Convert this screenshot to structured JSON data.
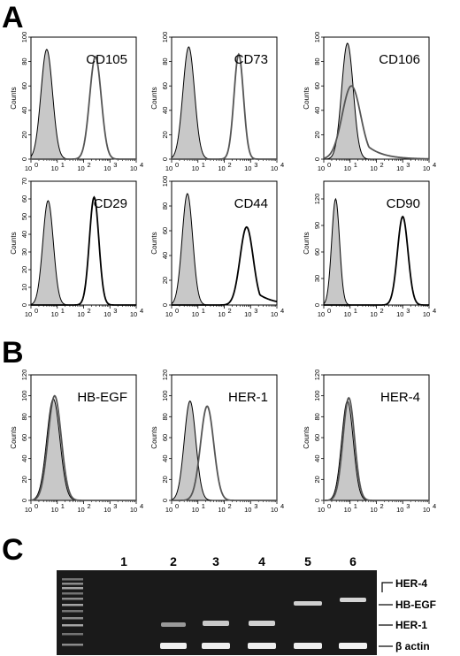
{
  "panel_labels": [
    "A",
    "B",
    "C"
  ],
  "chart_data": [
    {
      "type": "area",
      "title": "CD105",
      "ylabel": "Counts",
      "ylim": [
        0,
        100
      ],
      "yticks": [
        "0",
        "20",
        "40",
        "60",
        "80",
        "100"
      ],
      "xscale": "log",
      "xticks": [
        "10",
        "10",
        "10",
        "10",
        "10"
      ],
      "xtick_exponents": [
        "0",
        "1",
        "2",
        "3",
        "4"
      ],
      "control": {
        "fill": "#c8c8c8",
        "peak_log10": 0.6,
        "sd": 0.22,
        "peak": 90
      },
      "series": [
        {
          "peak_log10": 2.45,
          "sd": 0.22,
          "peak": 84,
          "color": "#555555"
        }
      ]
    },
    {
      "type": "area",
      "title": "CD73",
      "ylabel": "Counts",
      "ylim": [
        0,
        100
      ],
      "yticks": [
        "0",
        "20",
        "40",
        "60",
        "80",
        "100"
      ],
      "xscale": "log",
      "xticks": [
        "10",
        "10",
        "10",
        "10",
        "10"
      ],
      "xtick_exponents": [
        "0",
        "1",
        "2",
        "3",
        "4"
      ],
      "control": {
        "fill": "#c8c8c8",
        "peak_log10": 0.65,
        "sd": 0.22,
        "peak": 92
      },
      "series": [
        {
          "peak_log10": 2.55,
          "sd": 0.18,
          "peak": 86,
          "color": "#555555"
        }
      ]
    },
    {
      "type": "area",
      "title": "CD106",
      "ylabel": "Counts",
      "ylim": [
        0,
        100
      ],
      "yticks": [
        "0",
        "20",
        "40",
        "60",
        "80",
        "100"
      ],
      "xscale": "log",
      "xticks": [
        "10",
        "10",
        "10",
        "10",
        "10"
      ],
      "xtick_exponents": [
        "0",
        "1",
        "2",
        "3",
        "4"
      ],
      "control": {
        "fill": "#c8c8c8",
        "peak_log10": 0.9,
        "sd": 0.22,
        "peak": 95
      },
      "series": [
        {
          "peak_log10": 1.05,
          "sd": 0.35,
          "peak": 60,
          "tail": 0.5,
          "color": "#555555"
        }
      ]
    },
    {
      "type": "area",
      "title": "CD29",
      "ylabel": "Counts",
      "ylim": [
        0,
        70
      ],
      "yticks": [
        "0",
        "10",
        "20",
        "30",
        "40",
        "50",
        "60",
        "70"
      ],
      "xscale": "log",
      "xticks": [
        "10",
        "10",
        "10",
        "10",
        "10"
      ],
      "xtick_exponents": [
        "0",
        "1",
        "2",
        "3",
        "4"
      ],
      "control": {
        "fill": "#c8c8c8",
        "peak_log10": 0.65,
        "sd": 0.2,
        "peak": 59
      },
      "series": [
        {
          "peak_log10": 2.4,
          "sd": 0.18,
          "peak": 61,
          "color": "#000000"
        }
      ]
    },
    {
      "type": "area",
      "title": "CD44",
      "ylabel": "Counts",
      "ylim": [
        0,
        100
      ],
      "yticks": [
        "0",
        "20",
        "40",
        "60",
        "80",
        "100"
      ],
      "xscale": "log",
      "xticks": [
        "10",
        "10",
        "10",
        "10",
        "10"
      ],
      "xtick_exponents": [
        "0",
        "1",
        "2",
        "3",
        "4"
      ],
      "control": {
        "fill": "#c8c8c8",
        "peak_log10": 0.6,
        "sd": 0.2,
        "peak": 90
      },
      "series": [
        {
          "peak_log10": 2.85,
          "sd": 0.25,
          "peak": 63,
          "tail": 0.3,
          "color": "#000000"
        }
      ]
    },
    {
      "type": "area",
      "title": "CD90",
      "ylabel": "Counts",
      "ylim": [
        0,
        140
      ],
      "yticks": [
        "0",
        "30",
        "60",
        "90",
        "120"
      ],
      "xscale": "log",
      "xticks": [
        "10",
        "10",
        "10",
        "10",
        "10"
      ],
      "xtick_exponents": [
        "0",
        "1",
        "2",
        "3",
        "4"
      ],
      "control": {
        "fill": "#c8c8c8",
        "peak_log10": 0.45,
        "sd": 0.15,
        "peak": 120
      },
      "series": [
        {
          "peak_log10": 3.0,
          "sd": 0.2,
          "peak": 100,
          "color": "#000000"
        }
      ]
    },
    {
      "type": "area",
      "title": "HB-EGF",
      "ylabel": "Counts",
      "ylim": [
        0,
        120
      ],
      "yticks": [
        "0",
        "20",
        "40",
        "60",
        "80",
        "100",
        "120"
      ],
      "xscale": "log",
      "xticks": [
        "10",
        "10",
        "10",
        "10",
        "10"
      ],
      "xtick_exponents": [
        "0",
        "1",
        "2",
        "3",
        "4"
      ],
      "control": {
        "fill": "#c8c8c8",
        "peak_log10": 0.85,
        "sd": 0.25,
        "peak": 97
      },
      "series": [
        {
          "peak_log10": 0.9,
          "sd": 0.25,
          "peak": 100,
          "color": "#555555"
        }
      ]
    },
    {
      "type": "area",
      "title": "HER-1",
      "ylabel": "Counts",
      "ylim": [
        0,
        120
      ],
      "yticks": [
        "0",
        "20",
        "40",
        "60",
        "80",
        "100",
        "120"
      ],
      "xscale": "log",
      "xticks": [
        "10",
        "10",
        "10",
        "10",
        "10"
      ],
      "xtick_exponents": [
        "0",
        "1",
        "2",
        "3",
        "4"
      ],
      "control": {
        "fill": "#c8c8c8",
        "peak_log10": 0.7,
        "sd": 0.22,
        "peak": 95
      },
      "series": [
        {
          "peak_log10": 1.35,
          "sd": 0.25,
          "peak": 90,
          "color": "#555555"
        }
      ]
    },
    {
      "type": "area",
      "title": "HER-4",
      "ylabel": "Counts",
      "ylim": [
        0,
        120
      ],
      "yticks": [
        "0",
        "20",
        "40",
        "60",
        "80",
        "100",
        "120"
      ],
      "xscale": "log",
      "xticks": [
        "10",
        "10",
        "10",
        "10",
        "10"
      ],
      "xtick_exponents": [
        "0",
        "1",
        "2",
        "3",
        "4"
      ],
      "control": {
        "fill": "#c8c8c8",
        "peak_log10": 0.9,
        "sd": 0.22,
        "peak": 95
      },
      "series": [
        {
          "peak_log10": 0.95,
          "sd": 0.22,
          "peak": 98,
          "color": "#555555"
        }
      ]
    }
  ],
  "gel": {
    "lanes": [
      "1",
      "2",
      "3",
      "4",
      "5",
      "6"
    ],
    "band_labels": [
      "HER-4",
      "HB-EGF",
      "HER-1",
      "β actin"
    ]
  }
}
